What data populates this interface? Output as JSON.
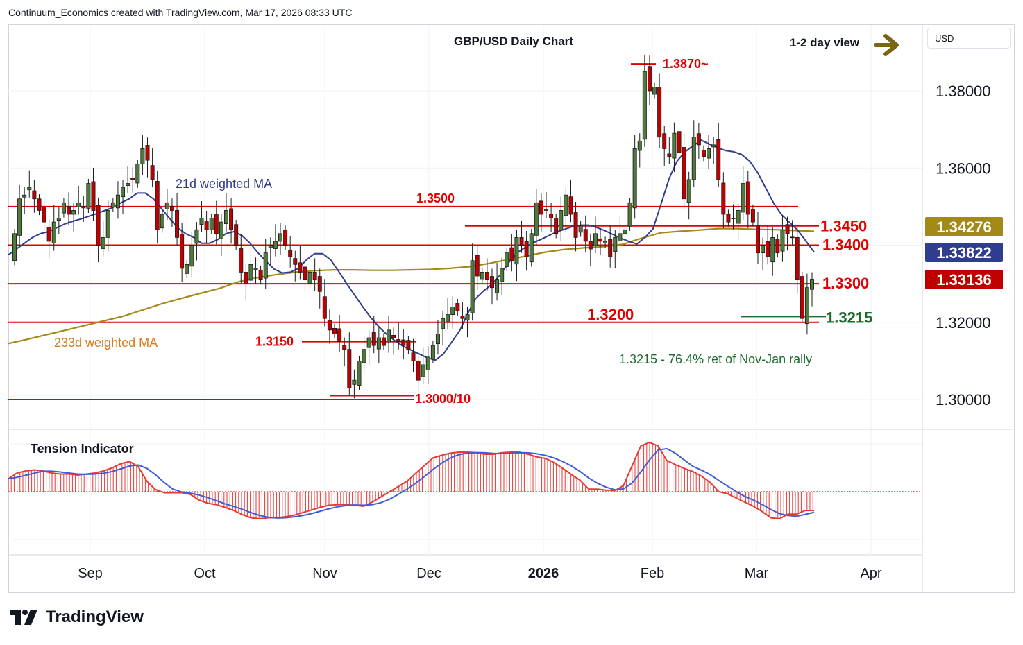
{
  "header": {
    "text": "Continuum_Economics created with TradingView.com, Mar 17, 2026 08:33 UTC"
  },
  "brand": {
    "name": "TradingView"
  },
  "currency_label": "USD",
  "colors": {
    "up": "#4f7a3e",
    "down": "#c00000",
    "wma21": "#2f3d8f",
    "wma233": "#a38a18",
    "level": "#e00000",
    "fib": "#1e6b2e",
    "arrow": "#7a6512"
  },
  "chart_data": [
    {
      "type": "candlestick",
      "title": "GBP/USD Daily Chart",
      "view_label": "1-2 day view",
      "view_arrow": "right-arrow-icon",
      "y_ticks": [
        "1.38000",
        "1.36000",
        "1.32000",
        "1.30000"
      ],
      "ylim": [
        1.293,
        1.3955
      ],
      "x_ticks": [
        "Sep",
        "Oct",
        "Nov",
        "Dec",
        "2026",
        "Feb",
        "Mar",
        "Apr"
      ],
      "price_tags": [
        {
          "label": "1.34276",
          "value": 1.34276,
          "series": "233d weighted MA",
          "color": "#a38a18"
        },
        {
          "label": "1.33822",
          "value": 1.33822,
          "series": "21d weighted MA",
          "color": "#2f3d8f"
        },
        {
          "label": "1.33136",
          "value": 1.33136,
          "series": "GBP/USD",
          "color": "#c00000"
        }
      ],
      "levels": [
        {
          "label": "1.3870~",
          "value": 1.387
        },
        {
          "label": "1.3500",
          "value": 1.35
        },
        {
          "label": "1.3450",
          "value": 1.345
        },
        {
          "label": "1.3400",
          "value": 1.34
        },
        {
          "label": "1.3300",
          "value": 1.33
        },
        {
          "label": "1.3215",
          "value": 1.3215
        },
        {
          "label": "1.3200",
          "value": 1.32
        },
        {
          "label": "1.3150",
          "value": 1.315
        },
        {
          "label": "1.3000/10",
          "value": 1.3
        }
      ],
      "annotations": {
        "wma21": "21d weighted MA",
        "wma233": "233d weighted MA",
        "fib": "1.3215 - 76.4% ret of Nov-Jan rally"
      },
      "closes": [
        1.343,
        1.352,
        1.353,
        1.355,
        1.352,
        1.349,
        1.346,
        1.341,
        1.346,
        1.347,
        1.351,
        1.348,
        1.349,
        1.351,
        1.35,
        1.356,
        1.349,
        1.34,
        1.342,
        1.349,
        1.351,
        1.353,
        1.355,
        1.356,
        1.357,
        1.361,
        1.365,
        1.362,
        1.357,
        1.344,
        1.348,
        1.351,
        1.349,
        1.342,
        1.334,
        1.335,
        1.34,
        1.344,
        1.347,
        1.344,
        1.347,
        1.343,
        1.346,
        1.349,
        1.344,
        1.34,
        1.333,
        1.33,
        1.335,
        1.334,
        1.331,
        1.338,
        1.34,
        1.341,
        1.343,
        1.34,
        1.337,
        1.335,
        1.333,
        1.331,
        1.333,
        1.331,
        1.328,
        1.321,
        1.318,
        1.317,
        1.315,
        1.313,
        1.303,
        1.305,
        1.31,
        1.313,
        1.316,
        1.314,
        1.316,
        1.314,
        1.318,
        1.316,
        1.315,
        1.314,
        1.313,
        1.31,
        1.305,
        1.309,
        1.311,
        1.314,
        1.317,
        1.321,
        1.322,
        1.324,
        1.323,
        1.321,
        1.322,
        1.336,
        1.332,
        1.333,
        1.331,
        1.329,
        1.331,
        1.334,
        1.338,
        1.336,
        1.342,
        1.34,
        1.337,
        1.343,
        1.351,
        1.348,
        1.349,
        1.347,
        1.343,
        1.349,
        1.353,
        1.348,
        1.342,
        1.345,
        1.341,
        1.339,
        1.343,
        1.341,
        1.341,
        1.337,
        1.342,
        1.343,
        1.344,
        1.351,
        1.365,
        1.367,
        1.385,
        1.38,
        1.381,
        1.368,
        1.365,
        1.363,
        1.369,
        1.364,
        1.352,
        1.357,
        1.368,
        1.366,
        1.363,
        1.365,
        1.366,
        1.357,
        1.348,
        1.346,
        1.347,
        1.349,
        1.356,
        1.348,
        1.346,
        1.338,
        1.34,
        1.337,
        1.342,
        1.338,
        1.344,
        1.343,
        1.342,
        1.331,
        1.321,
        1.329,
        1.331
      ],
      "series": [
        {
          "name": "21d weighted MA",
          "values": [
            1.3375,
            1.339,
            1.3405,
            1.342,
            1.343,
            1.3435,
            1.3445,
            1.3455,
            1.3462,
            1.3468,
            1.3475,
            1.3482,
            1.349,
            1.3498,
            1.351,
            1.352,
            1.3535,
            1.3535,
            1.352,
            1.3495,
            1.347,
            1.3445,
            1.343,
            1.342,
            1.3405,
            1.3405,
            1.3415,
            1.343,
            1.3435,
            1.3425,
            1.3405,
            1.338,
            1.3358,
            1.3338,
            1.3328,
            1.333,
            1.334,
            1.3362,
            1.3378,
            1.3378,
            1.3362,
            1.3332,
            1.33,
            1.327,
            1.324,
            1.3212,
            1.3188,
            1.3168,
            1.3152,
            1.3138,
            1.3128,
            1.3118,
            1.3108,
            1.3102,
            1.3118,
            1.3148,
            1.3178,
            1.3222,
            1.3262,
            1.3282,
            1.3298,
            1.3322,
            1.3352,
            1.3378,
            1.3392,
            1.3405,
            1.3414,
            1.3424,
            1.3434,
            1.3441,
            1.3448,
            1.3452,
            1.3452,
            1.3446,
            1.3438,
            1.3428,
            1.3418,
            1.341,
            1.3403,
            1.342,
            1.3442,
            1.3506,
            1.3572,
            1.3618,
            1.3642,
            1.3658,
            1.3672,
            1.3662,
            1.3653,
            1.3645,
            1.3642,
            1.3635,
            1.3618,
            1.3588,
            1.3548,
            1.3508,
            1.3478,
            1.3458,
            1.3438,
            1.341,
            1.3382
          ]
        },
        {
          "name": "233d weighted MA",
          "values": [
            1.3145,
            1.3156,
            1.3168,
            1.318,
            1.3192,
            1.3204,
            1.3216,
            1.3232,
            1.3248,
            1.3262,
            1.3275,
            1.3288,
            1.3305,
            1.3316,
            1.3324,
            1.333,
            1.3334,
            1.3336,
            1.3336,
            1.3335,
            1.3335,
            1.3336,
            1.3337,
            1.334,
            1.3344,
            1.3352,
            1.3362,
            1.3372,
            1.3382,
            1.3389,
            1.3393,
            1.3396,
            1.3402,
            1.3418,
            1.3432,
            1.3436,
            1.3439,
            1.3443,
            1.3443,
            1.3441,
            1.344,
            1.3438,
            1.3436
          ]
        },
        {
          "name": "Tension Indicator",
          "values": [
            25,
            36,
            40,
            42,
            40,
            36,
            34,
            34,
            32,
            34,
            36,
            40,
            46,
            54,
            58,
            48,
            20,
            4,
            -2,
            -2,
            -2,
            -5,
            -16,
            -22,
            -25,
            -30,
            -36,
            -44,
            -50,
            -52,
            -50,
            -50,
            -48,
            -45,
            -40,
            -35,
            -30,
            -26,
            -25,
            -25,
            -26,
            -28,
            -20,
            -10,
            0,
            10,
            20,
            35,
            50,
            65,
            70,
            74,
            76,
            76,
            75,
            72,
            72,
            75,
            76,
            76,
            72,
            67,
            64,
            56,
            45,
            33,
            22,
            5,
            5,
            3,
            2,
            12,
            50,
            88,
            95,
            88,
            60,
            52,
            45,
            39,
            30,
            18,
            0,
            -4,
            -12,
            -20,
            -28,
            -38,
            -50,
            -52,
            -43,
            -43,
            -36,
            -36
          ]
        }
      ]
    }
  ]
}
